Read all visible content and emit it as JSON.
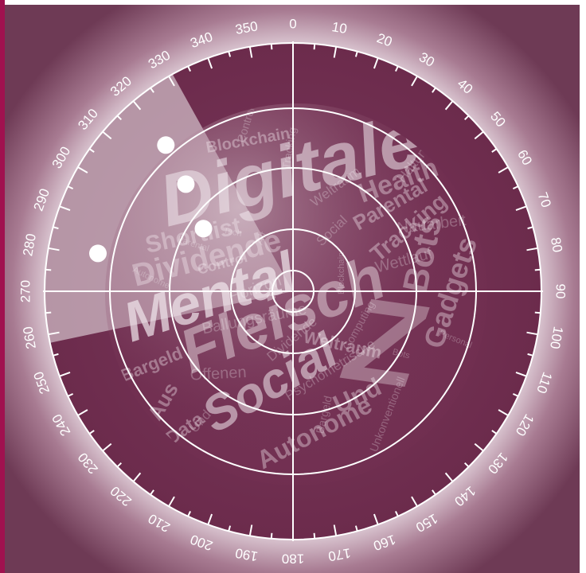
{
  "colors": {
    "panel_edge": "#6e3a55",
    "panel_glow": "#e9dde4",
    "wine": "#7a3357",
    "wine_dark": "#5f2744",
    "sweep": "#ffffff",
    "accent_strip": "#a0114f"
  },
  "dial_labels": [
    "0",
    "10",
    "20",
    "30",
    "40",
    "50",
    "60",
    "70",
    "80",
    "90",
    "100",
    "110",
    "120",
    "130",
    "140",
    "150",
    "160",
    "170",
    "180",
    "190",
    "200",
    "210",
    "220",
    "230",
    "240",
    "250",
    "260",
    "270",
    "280",
    "290",
    "300",
    "310",
    "320",
    "330",
    "340",
    "350"
  ],
  "blips": [
    {
      "bearing": 319,
      "range": 0.78
    },
    {
      "bearing": 315,
      "range": 0.61
    },
    {
      "bearing": 305,
      "range": 0.44
    },
    {
      "bearing": 281,
      "range": 0.8
    }
  ],
  "words": {
    "big": [
      "Digitale",
      "Mental",
      "Fleisch",
      "Social",
      "Z"
    ],
    "medium": [
      "Dividende",
      "Shortlist",
      "Bots",
      "Und",
      "Health",
      "Gadgets",
      "Tracking",
      "Autonome",
      "Parental",
      "Blockchain",
      "Bargeld",
      "Control",
      "Data",
      "Weltraum",
      "Aus"
    ],
    "small": [
      "Blockchain",
      "Computing",
      "Psychometrische",
      "Offenen",
      "Autonome",
      "Alt",
      "Weltraum",
      "Nauarbeit",
      "Personal",
      "Unkonventionell",
      "Dividende",
      "Ballungsräume",
      "Parental",
      "Control",
      "Social",
      "Wettlauf",
      "Bots",
      "Bargeld",
      "Und",
      "Horizon",
      "Tech",
      "Tracking",
      "Haltung"
    ]
  }
}
